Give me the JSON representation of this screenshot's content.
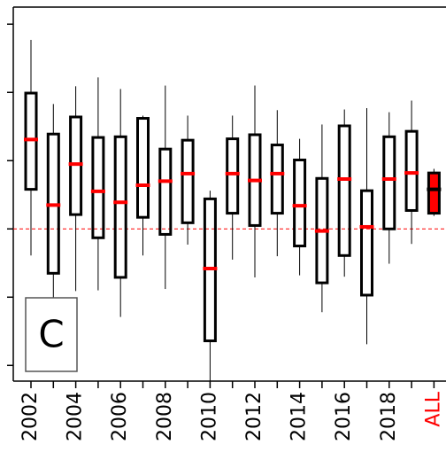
{
  "chart_data": {
    "type": "box",
    "categories": [
      "2002",
      null,
      "2004",
      null,
      "2006",
      null,
      "2008",
      null,
      "2010",
      null,
      "2012",
      null,
      "2014",
      null,
      "2016",
      null,
      "2018",
      null,
      "ALL"
    ],
    "boxes": [
      {
        "whishi": 2.77,
        "q3": 1.99,
        "med": 1.31,
        "q1": 0.58,
        "whislo": -0.39
      },
      {
        "whishi": 1.83,
        "q3": 1.39,
        "med": 0.35,
        "q1": -0.65,
        "whislo": -1.19
      },
      {
        "whishi": 2.09,
        "q3": 1.64,
        "med": 0.95,
        "q1": 0.21,
        "whislo": -0.91
      },
      {
        "whishi": 2.22,
        "q3": 1.34,
        "med": 0.55,
        "q1": -0.13,
        "whislo": -0.9
      },
      {
        "whishi": 2.05,
        "q3": 1.35,
        "med": 0.39,
        "q1": -0.71,
        "whislo": -1.29
      },
      {
        "whishi": 1.66,
        "q3": 1.62,
        "med": 0.64,
        "q1": 0.17,
        "whislo": -0.39
      },
      {
        "whishi": 2.1,
        "q3": 1.17,
        "med": 0.7,
        "q1": -0.08,
        "whislo": -0.88
      },
      {
        "whishi": 1.66,
        "q3": 1.3,
        "med": 0.81,
        "q1": 0.09,
        "whislo": -0.23
      },
      {
        "whishi": 0.56,
        "q3": 0.44,
        "med": -0.58,
        "q1": -1.64,
        "whislo": -2.23
      },
      {
        "whishi": 1.66,
        "q3": 1.32,
        "med": 0.81,
        "q1": 0.23,
        "whislo": -0.45
      },
      {
        "whishi": 2.1,
        "q3": 1.38,
        "med": 0.71,
        "q1": 0.05,
        "whislo": -0.71
      },
      {
        "whishi": 1.74,
        "q3": 1.23,
        "med": 0.81,
        "q1": 0.23,
        "whislo": -0.4
      },
      {
        "whishi": 1.32,
        "q3": 1.01,
        "med": 0.34,
        "q1": -0.25,
        "whislo": -0.68
      },
      {
        "whishi": 1.53,
        "q3": 0.74,
        "med": -0.03,
        "q1": -0.79,
        "whislo": -1.22
      },
      {
        "whishi": 1.75,
        "q3": 1.51,
        "med": 0.73,
        "q1": -0.39,
        "whislo": -0.7
      },
      {
        "whishi": 1.77,
        "q3": 0.56,
        "med": 0.03,
        "q1": -0.97,
        "whislo": -1.69
      },
      {
        "whishi": 1.71,
        "q3": 1.35,
        "med": 0.73,
        "q1": 0.0,
        "whislo": -0.51
      },
      {
        "whishi": 1.88,
        "q3": 1.43,
        "med": 0.82,
        "q1": 0.27,
        "whislo": -0.22
      },
      {
        "whishi": 0.88,
        "q3": 0.82,
        "med": 0.58,
        "q1": 0.23,
        "whislo": 0.19
      }
    ],
    "box_color": "#000000",
    "median_color": "#ff0000",
    "highlight_category": "ALL",
    "highlight_color": "#ff0000",
    "reference_line": 0,
    "reference_color": "#ff0000",
    "ylim": [
      -2.23,
      3.25
    ],
    "yticks": [
      -2,
      -1,
      0,
      1,
      2,
      3
    ],
    "annotation": "C"
  }
}
